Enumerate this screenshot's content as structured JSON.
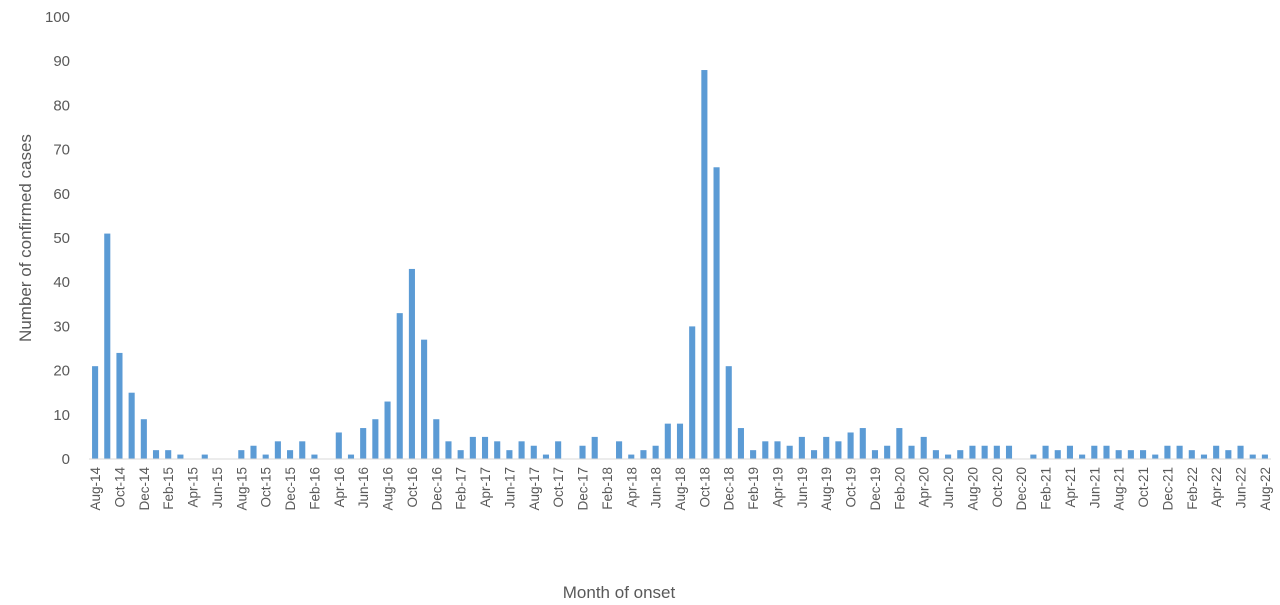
{
  "chart_data": {
    "type": "bar",
    "title": "",
    "xlabel": "Month of onset",
    "ylabel": "Number of confirmed cases",
    "ylim": [
      0,
      100
    ],
    "yticks": [
      "0",
      "10",
      "20",
      "30",
      "40",
      "50",
      "60",
      "70",
      "80",
      "90",
      "100"
    ],
    "grid": false,
    "legend": "none",
    "bar_color": "#5b9bd5",
    "categories": [
      "Aug-14",
      "Sep-14",
      "Oct-14",
      "Nov-14",
      "Dec-14",
      "Jan-15",
      "Feb-15",
      "Mar-15",
      "Apr-15",
      "May-15",
      "Jun-15",
      "Jul-15",
      "Aug-15",
      "Sep-15",
      "Oct-15",
      "Nov-15",
      "Dec-15",
      "Jan-16",
      "Feb-16",
      "Mar-16",
      "Apr-16",
      "May-16",
      "Jun-16",
      "Jul-16",
      "Aug-16",
      "Sep-16",
      "Oct-16",
      "Nov-16",
      "Dec-16",
      "Jan-17",
      "Feb-17",
      "Mar-17",
      "Apr-17",
      "May-17",
      "Jun-17",
      "Jul-17",
      "Aug-17",
      "Sep-17",
      "Oct-17",
      "Nov-17",
      "Dec-17",
      "Jan-18",
      "Feb-18",
      "Mar-18",
      "Apr-18",
      "May-18",
      "Jun-18",
      "Jul-18",
      "Aug-18",
      "Sep-18",
      "Oct-18",
      "Nov-18",
      "Dec-18",
      "Jan-19",
      "Feb-19",
      "Mar-19",
      "Apr-19",
      "May-19",
      "Jun-19",
      "Jul-19",
      "Aug-19",
      "Sep-19",
      "Oct-19",
      "Nov-19",
      "Dec-19",
      "Jan-20",
      "Feb-20",
      "Mar-20",
      "Apr-20",
      "May-20",
      "Jun-20",
      "Jul-20",
      "Aug-20",
      "Sep-20",
      "Oct-20",
      "Nov-20",
      "Dec-20",
      "Jan-21",
      "Feb-21",
      "Mar-21",
      "Apr-21",
      "May-21",
      "Jun-21",
      "Jul-21",
      "Aug-21",
      "Sep-21",
      "Oct-21",
      "Nov-21",
      "Dec-21",
      "Jan-22",
      "Feb-22",
      "Mar-22",
      "Apr-22",
      "May-22",
      "Jun-22",
      "Jul-22",
      "Aug-22"
    ],
    "visible_tick_labels": [
      "Aug-14",
      "Oct-14",
      "Dec-14",
      "Feb-15",
      "Apr-15",
      "Jun-15",
      "Aug-15",
      "Oct-15",
      "Dec-15",
      "Feb-16",
      "Apr-16",
      "Jun-16",
      "Aug-16",
      "Oct-16",
      "Dec-16",
      "Feb-17",
      "Apr-17",
      "Jun-17",
      "Aug-17",
      "Oct-17",
      "Dec-17",
      "Feb-18",
      "Apr-18",
      "Jun-18",
      "Aug-18",
      "Oct-18",
      "Dec-18",
      "Feb-19",
      "Apr-19",
      "Jun-19",
      "Aug-19",
      "Oct-19",
      "Dec-19",
      "Feb-20",
      "Apr-20",
      "Jun-20",
      "Aug-20",
      "Oct-20",
      "Dec-20",
      "Feb-21",
      "Apr-21",
      "Jun-21",
      "Aug-21",
      "Oct-21",
      "Dec-21",
      "Feb-22",
      "Apr-22",
      "Jun-22",
      "Aug-22"
    ],
    "values": [
      21,
      51,
      24,
      15,
      9,
      2,
      2,
      1,
      0,
      1,
      0,
      0,
      2,
      3,
      1,
      4,
      2,
      4,
      1,
      0,
      6,
      1,
      7,
      9,
      13,
      33,
      43,
      27,
      9,
      4,
      2,
      5,
      5,
      4,
      2,
      4,
      3,
      1,
      4,
      0,
      3,
      5,
      0,
      4,
      1,
      2,
      3,
      8,
      8,
      30,
      88,
      66,
      21,
      7,
      2,
      4,
      4,
      3,
      5,
      2,
      5,
      4,
      6,
      7,
      2,
      3,
      7,
      3,
      5,
      2,
      1,
      2,
      3,
      3,
      3,
      3,
      0,
      1,
      3,
      2,
      3,
      1,
      3,
      3,
      2,
      2,
      2,
      1,
      3,
      3,
      2,
      1,
      3,
      2,
      3,
      1,
      1
    ]
  }
}
